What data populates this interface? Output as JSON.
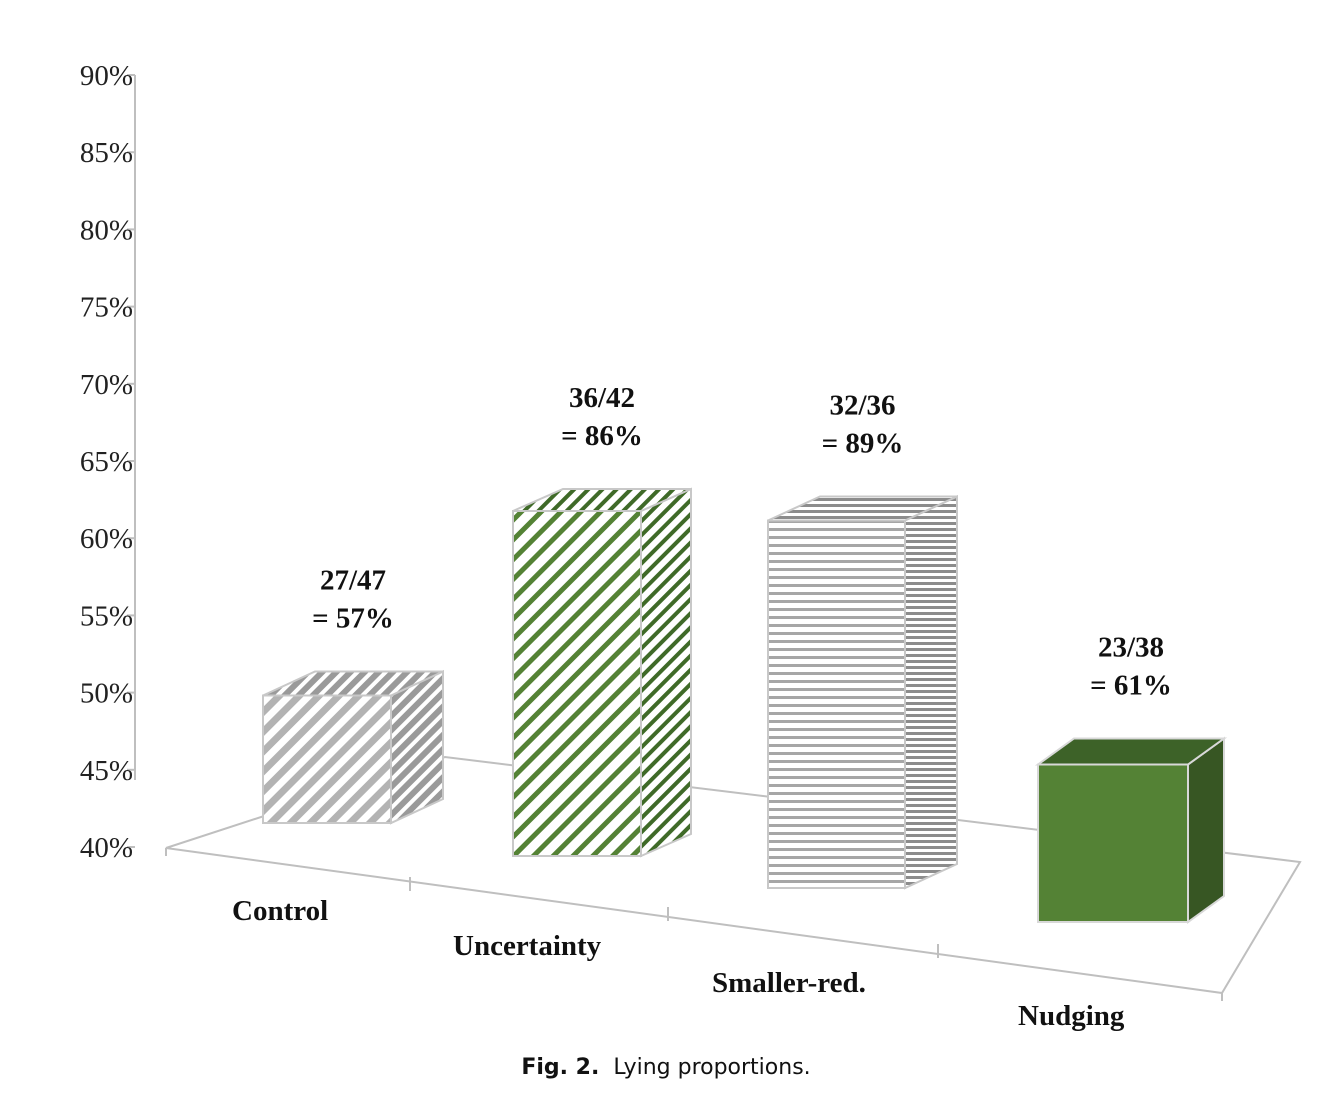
{
  "chart_data": {
    "type": "bar",
    "categories": [
      "Control",
      "Uncertainty",
      "Smaller-red.",
      "Nudging"
    ],
    "values": [
      0.57,
      0.86,
      0.89,
      0.61
    ],
    "data_labels": [
      [
        "27/47",
        "= 57%"
      ],
      [
        "36/42",
        "= 86%"
      ],
      [
        "32/36",
        "= 89%"
      ],
      [
        "23/38",
        "= 61%"
      ]
    ],
    "ylim": [
      0.4,
      0.9
    ],
    "yticks": [
      0.4,
      0.45,
      0.5,
      0.55,
      0.6,
      0.65,
      0.7,
      0.75,
      0.8,
      0.85,
      0.9
    ],
    "ytick_labels": [
      "40%",
      "45%",
      "50%",
      "55%",
      "60%",
      "65%",
      "70%",
      "75%",
      "80%",
      "85%",
      "90%"
    ],
    "grid": false,
    "style": "3d-column",
    "bar_fills": [
      "diagonal-stripes-gray",
      "diagonal-stripes-green",
      "horizontal-stripes-gray",
      "solid-green"
    ],
    "colors": {
      "gray": "#a6a6a6",
      "green": "#548235",
      "green_dark": "#375623",
      "axis": "#bfbfbf"
    }
  },
  "caption": {
    "fig": "Fig. 2.",
    "text": "Lying proportions."
  }
}
